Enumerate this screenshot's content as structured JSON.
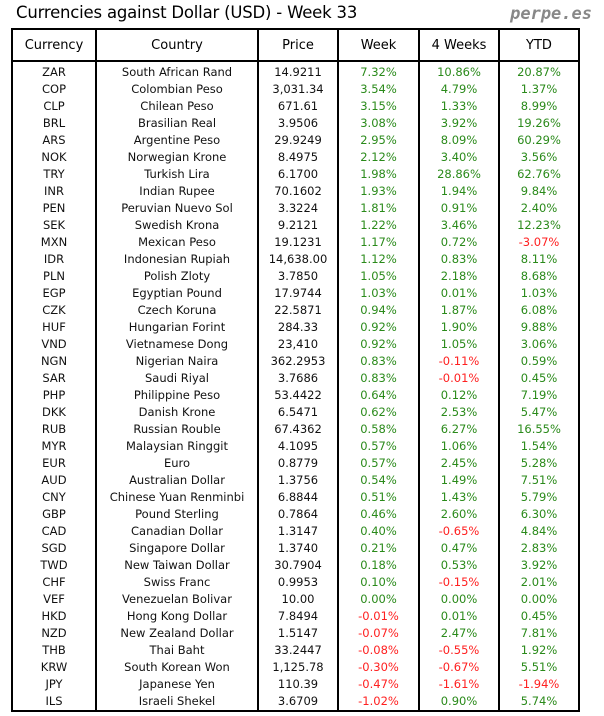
{
  "title": "Currencies against Dollar (USD) - Week 33",
  "brand": "perpe.es",
  "colors": {
    "positive": "#2a8a1a",
    "negative": "#ff2020"
  },
  "headers": [
    "Currency",
    "Country",
    "Price",
    "Week",
    "4 Weeks",
    "YTD"
  ],
  "rows": [
    [
      "ZAR",
      "South African Rand",
      "14.9211",
      "7.32%",
      "10.86%",
      "20.87%"
    ],
    [
      "COP",
      "Colombian Peso",
      "3,031.34",
      "3.54%",
      "4.79%",
      "1.37%"
    ],
    [
      "CLP",
      "Chilean Peso",
      "671.61",
      "3.15%",
      "1.33%",
      "8.99%"
    ],
    [
      "BRL",
      "Brasilian Real",
      "3.9506",
      "3.08%",
      "3.92%",
      "19.26%"
    ],
    [
      "ARS",
      "Argentine Peso",
      "29.9249",
      "2.95%",
      "8.09%",
      "60.29%"
    ],
    [
      "NOK",
      "Norwegian Krone",
      "8.4975",
      "2.12%",
      "3.40%",
      "3.56%"
    ],
    [
      "TRY",
      "Turkish Lira",
      "6.1700",
      "1.98%",
      "28.86%",
      "62.76%"
    ],
    [
      "INR",
      "Indian Rupee",
      "70.1602",
      "1.93%",
      "1.94%",
      "9.84%"
    ],
    [
      "PEN",
      "Peruvian Nuevo Sol",
      "3.3224",
      "1.81%",
      "0.91%",
      "2.40%"
    ],
    [
      "SEK",
      "Swedish Krona",
      "9.2121",
      "1.22%",
      "3.46%",
      "12.23%"
    ],
    [
      "MXN",
      "Mexican Peso",
      "19.1231",
      "1.17%",
      "0.72%",
      "-3.07%"
    ],
    [
      "IDR",
      "Indonesian Rupiah",
      "14,638.00",
      "1.12%",
      "0.83%",
      "8.11%"
    ],
    [
      "PLN",
      "Polish Zloty",
      "3.7850",
      "1.05%",
      "2.18%",
      "8.68%"
    ],
    [
      "EGP",
      "Egyptian Pound",
      "17.9744",
      "1.03%",
      "0.01%",
      "1.03%"
    ],
    [
      "CZK",
      "Czech Koruna",
      "22.5871",
      "0.94%",
      "1.87%",
      "6.08%"
    ],
    [
      "HUF",
      "Hungarian Forint",
      "284.33",
      "0.92%",
      "1.90%",
      "9.88%"
    ],
    [
      "VND",
      "Vietnamese Dong",
      "23,410",
      "0.92%",
      "1.05%",
      "3.06%"
    ],
    [
      "NGN",
      "Nigerian Naira",
      "362.2953",
      "0.83%",
      "-0.11%",
      "0.59%"
    ],
    [
      "SAR",
      "Saudi Riyal",
      "3.7686",
      "0.83%",
      "-0.01%",
      "0.45%"
    ],
    [
      "PHP",
      "Philippine Peso",
      "53.4422",
      "0.64%",
      "0.12%",
      "7.19%"
    ],
    [
      "DKK",
      "Danish Krone",
      "6.5471",
      "0.62%",
      "2.53%",
      "5.47%"
    ],
    [
      "RUB",
      "Russian Rouble",
      "67.4362",
      "0.58%",
      "6.27%",
      "16.55%"
    ],
    [
      "MYR",
      "Malaysian Ringgit",
      "4.1095",
      "0.57%",
      "1.06%",
      "1.54%"
    ],
    [
      "EUR",
      "Euro",
      "0.8779",
      "0.57%",
      "2.45%",
      "5.28%"
    ],
    [
      "AUD",
      "Australian Dollar",
      "1.3756",
      "0.54%",
      "1.49%",
      "7.51%"
    ],
    [
      "CNY",
      "Chinese Yuan Renminbi",
      "6.8844",
      "0.51%",
      "1.43%",
      "5.79%"
    ],
    [
      "GBP",
      "Pound Sterling",
      "0.7864",
      "0.46%",
      "2.60%",
      "6.30%"
    ],
    [
      "CAD",
      "Canadian Dollar",
      "1.3147",
      "0.40%",
      "-0.65%",
      "4.84%"
    ],
    [
      "SGD",
      "Singapore Dollar",
      "1.3740",
      "0.21%",
      "0.47%",
      "2.83%"
    ],
    [
      "TWD",
      "New Taiwan Dollar",
      "30.7904",
      "0.18%",
      "0.53%",
      "3.92%"
    ],
    [
      "CHF",
      "Swiss Franc",
      "0.9953",
      "0.10%",
      "-0.15%",
      "2.01%"
    ],
    [
      "VEF",
      "Venezuelan Bolivar",
      "10.00",
      "0.00%",
      "0.00%",
      "0.00%"
    ],
    [
      "HKD",
      "Hong Kong Dollar",
      "7.8494",
      "-0.01%",
      "0.01%",
      "0.45%"
    ],
    [
      "NZD",
      "New Zealand Dollar",
      "1.5147",
      "-0.07%",
      "2.47%",
      "7.81%"
    ],
    [
      "THB",
      "Thai Baht",
      "33.2447",
      "-0.08%",
      "-0.55%",
      "1.92%"
    ],
    [
      "KRW",
      "South Korean Won",
      "1,125.78",
      "-0.30%",
      "-0.67%",
      "5.51%"
    ],
    [
      "JPY",
      "Japanese Yen",
      "110.39",
      "-0.47%",
      "-1.61%",
      "-1.94%"
    ],
    [
      "ILS",
      "Israeli Shekel",
      "3.6709",
      "-1.02%",
      "0.90%",
      "5.74%"
    ]
  ]
}
